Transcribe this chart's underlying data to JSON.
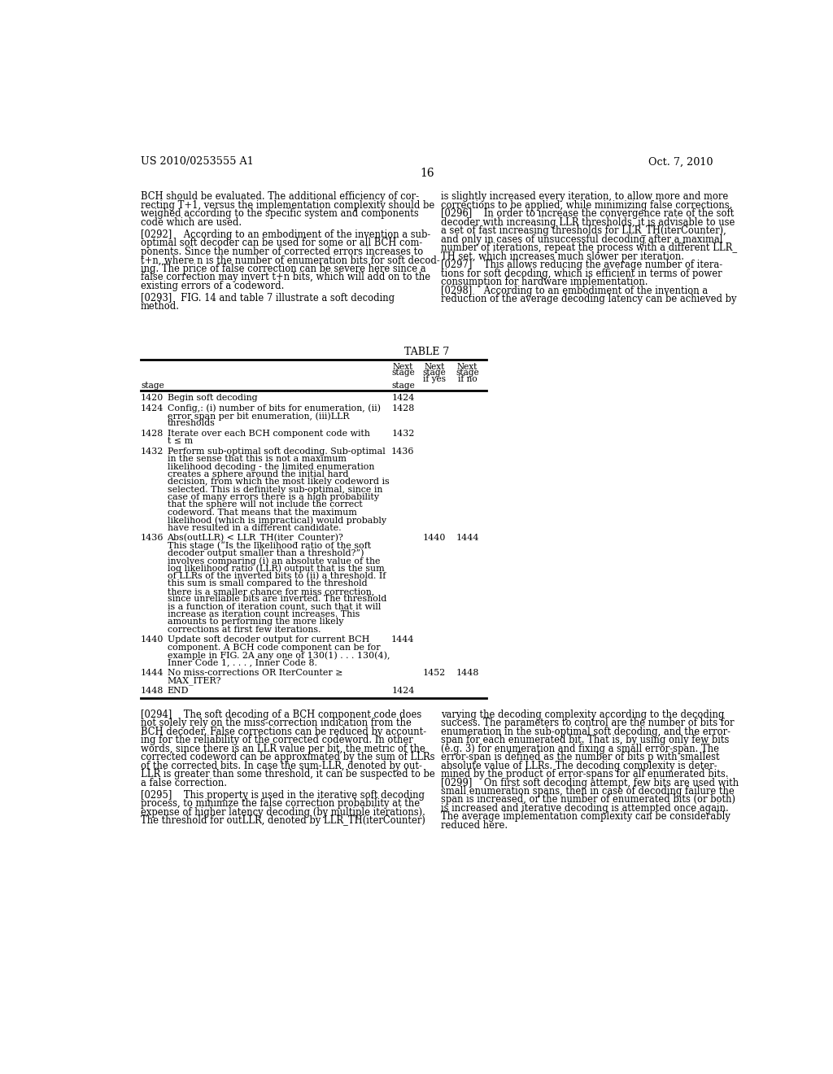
{
  "bg_color": "#ffffff",
  "page_number": "16",
  "header_left": "US 2010/0253555 A1",
  "header_right": "Oct. 7, 2010",
  "left_col_text": [
    "BCH should be evaluated. The additional efficiency of cor-",
    "recting T+1, versus the implementation complexity should be",
    "weighed according to the specific system and components",
    "code which are used.",
    "",
    "[0292]    According to an embodiment of the invention a sub-",
    "optimal soft decoder can be used for some or all BCH com-",
    "ponents. Since the number of corrected errors increases to",
    "t+n, where n is the number of enumeration bits for soft decod-",
    "ing. The price of false correction can be severe here since a",
    "false correction may invert t+n bits, which will add on to the",
    "existing errors of a codeword.",
    "",
    "[0293]   FIG. 14 and table 7 illustrate a soft decoding",
    "method."
  ],
  "right_col_text": [
    "is slightly increased every iteration, to allow more and more",
    "corrections to be applied, while minimizing false corrections.",
    "[0296]    In order to increase the convergence rate of the soft",
    "decoder with increasing LLR thresholds, it is advisable to use",
    "a set of fast increasing thresholds for LLR_TH(iterCounter),",
    "and only in cases of unsuccessful decoding after a maximal",
    "number of iterations, repeat the process with a different LLR_",
    "TH set, which increases much slower per iteration.",
    "[0297]    This allows reducing the average number of itera-",
    "tions for soft decoding, which is efficient in terms of power",
    "consumption for hardware implementation.",
    "[0298]    According to an embodiment of the invention a",
    "reduction of the average decoding latency can be achieved by"
  ],
  "table_title": "TABLE 7",
  "table_rows": [
    {
      "stage": "1420",
      "description": "Begin soft decoding",
      "next_stage": "1424",
      "next_if_yes": "",
      "next_if_no": ""
    },
    {
      "stage": "1424",
      "description": "Config,: (i) number of bits for enumeration, (ii)\nerror span per bit enumeration, (iii)LLR\nthresholds",
      "next_stage": "1428",
      "next_if_yes": "",
      "next_if_no": ""
    },
    {
      "stage": "1428",
      "description": "Iterate over each BCH component code with\nt ≤ m",
      "next_stage": "1432",
      "next_if_yes": "",
      "next_if_no": ""
    },
    {
      "stage": "1432",
      "description": "Perform sub-optimal soft decoding. Sub-optimal\nin the sense that this is not a maximum\nlikelihood decoding - the limited enumeration\ncreates a sphere around the initial hard\ndecision, from which the most likely codeword is\nselected. This is definitely sub-optimal, since in\ncase of many errors there is a high probability\nthat the sphere will not include the correct\ncodeword. That means that the maximum\nlikelihood (which is impractical) would probably\nhave resulted in a different candidate.",
      "next_stage": "1436",
      "next_if_yes": "",
      "next_if_no": ""
    },
    {
      "stage": "1436",
      "description": "Abs(outLLR) < LLR_TH(iter_Counter)?\nThis stage (“Is the likelihood ratio of the soft\ndecoder output smaller than a threshold?”)\ninvolves comparing (i) an absolute value of the\nlog likelihood ratio (LLR) output that is the sum\nof LLRs of the inverted bits to (ii) a threshold. If\nthis sum is small compared to the threshold\nthere is a smaller chance for miss correction,\nsince unreliable bits are inverted. The threshold\nis a function of iteration count, such that it will\nincrease as iteration count increases. This\namounts to performing the more likely\ncorrections at first few iterations.",
      "next_stage": "",
      "next_if_yes": "1440",
      "next_if_no": "1444"
    },
    {
      "stage": "1440",
      "description": "Update soft decoder output for current BCH\ncomponent. A BCH code component can be for\nexample in FIG. 2A any one of 130(1) . . . 130(4),\nInner Code 1, . . . , Inner Code 8.",
      "next_stage": "1444",
      "next_if_yes": "",
      "next_if_no": ""
    },
    {
      "stage": "1444",
      "description": "No miss-corrections OR IterCounter ≥\nMAX_ITER?",
      "next_stage": "",
      "next_if_yes": "1452",
      "next_if_no": "1448"
    },
    {
      "stage": "1448",
      "description": "END",
      "next_stage": "1424",
      "next_if_yes": "",
      "next_if_no": ""
    }
  ],
  "bottom_left_text": [
    "[0294]    The soft decoding of a BCH component code does",
    "not solely rely on the miss-correction indication from the",
    "BCH decoder. False corrections can be reduced by account-",
    "ing for the reliability of the corrected codeword. In other",
    "words, since there is an LLR value per bit, the metric of the",
    "corrected codeword can be approximated by the sum of LLRs",
    "of the corrected bits. In case the sum-LLR, denoted by out-",
    "LLR is greater than some threshold, it can be suspected to be",
    "a false correction.",
    "",
    "[0295]    This property is used in the iterative soft decoding",
    "process, to minimize the false correction probability at the",
    "expense of higher latency decoding (by multiple iterations).",
    "The threshold for outLLR, denoted by LLR_TH(iterCounter)"
  ],
  "bottom_right_text": [
    "varying the decoding complexity according to the decoding",
    "success. The parameters to control are the number of bits for",
    "enumeration in the sub-optimal soft decoding, and the error-",
    "span for each enumerated bit. That is, by using only few bits",
    "(e.g. 3) for enumeration and fixing a small error-span. The",
    "error-span is defined as the number of bits p with smallest",
    "absolute value of LLRs. The decoding complexity is deter-",
    "mined by the product of error-spans for all enumerated bits.",
    "[0299]    On first soft decoding attempt, few bits are used with",
    "small enumeration spans, then in case of decoding failure the",
    "span is increased, or the number of enumerated bits (or both)",
    "is increased and iterative decoding is attempted once again.",
    "The average implementation complexity can be considerably",
    "reduced here."
  ]
}
